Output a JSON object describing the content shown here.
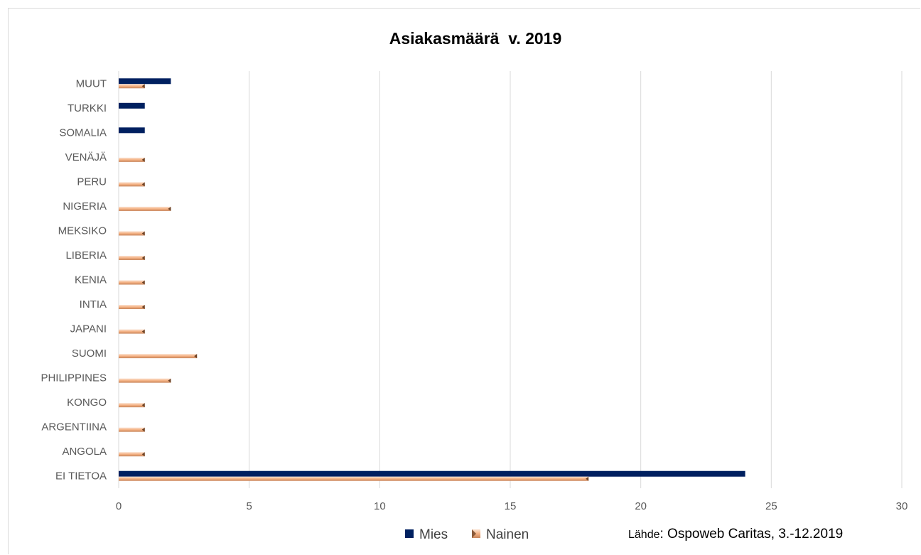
{
  "chart_data": {
    "type": "bar",
    "orientation": "horizontal",
    "title": "Asiakasmäärä  v. 2019",
    "categories": [
      "EI TIETOA",
      "ANGOLA",
      "ARGENTIINA",
      "KONGO",
      "PHILIPPINES",
      "SUOMI",
      "JAPANI",
      "INTIA",
      "KENIA",
      "LIBERIA",
      "MEKSIKO",
      "NIGERIA",
      "PERU",
      "VENÄJÄ",
      "SOMALIA",
      "TURKKI",
      "MUUT"
    ],
    "series": [
      {
        "name": "Mies",
        "color": "#002060",
        "values": [
          24,
          0,
          0,
          0,
          0,
          0,
          0,
          0,
          0,
          0,
          0,
          0,
          0,
          0,
          1,
          1,
          2
        ]
      },
      {
        "name": "Nainen",
        "color": "#f4b183",
        "values": [
          18,
          1,
          1,
          1,
          2,
          3,
          1,
          1,
          1,
          1,
          1,
          2,
          1,
          1,
          0,
          0,
          1
        ]
      }
    ],
    "xlim": [
      0,
      30
    ],
    "xticks": [
      "0",
      "5",
      "10",
      "15",
      "20",
      "25",
      "30"
    ],
    "grid": true,
    "legend_position": "bottom",
    "source": {
      "label": "Lähde",
      "text": ": Ospoweb Caritas, 3.-12.2019"
    }
  }
}
